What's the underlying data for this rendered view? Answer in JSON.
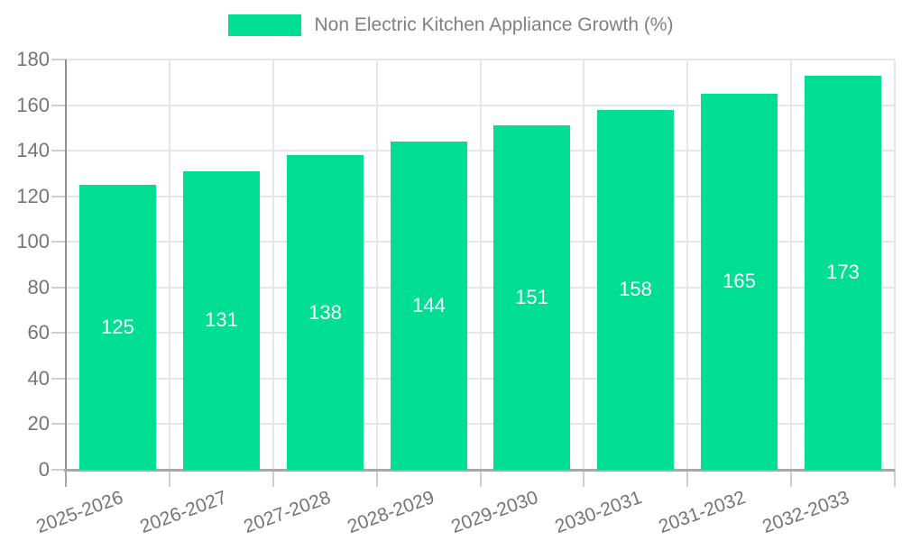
{
  "legend": {
    "label": "Non Electric Kitchen Appliance Growth (%)",
    "position": "top-center"
  },
  "colors": {
    "bar": "#00DE94",
    "grid": "#e6e6e6",
    "axis_y_line": "#8f8f8f",
    "axis_x_line": "#a8a8a8",
    "tick_mark": "#cfcfcf",
    "axis_text": "#757575",
    "legend_text": "#808080",
    "bar_label": "#ffffff",
    "background": "#ffffff"
  },
  "chart_data": {
    "type": "bar",
    "title": "Non Electric Kitchen Appliance Growth (%)",
    "categories": [
      "2025-2026",
      "2026-2027",
      "2027-2028",
      "2028-2029",
      "2029-2030",
      "2030-2031",
      "2031-2032",
      "2032-2033"
    ],
    "values": [
      125,
      131,
      138,
      144,
      151,
      158,
      165,
      173
    ],
    "series_name": "Non Electric Kitchen Appliance Growth (%)",
    "xlabel": "",
    "ylabel": "",
    "ylim": [
      0,
      180
    ],
    "y_ticks": [
      0,
      20,
      40,
      60,
      80,
      100,
      120,
      140,
      160,
      180
    ],
    "grid": true,
    "legend_position": "top-center",
    "bar_label_position": "inside-center",
    "x_label_rotation_deg": -20
  }
}
